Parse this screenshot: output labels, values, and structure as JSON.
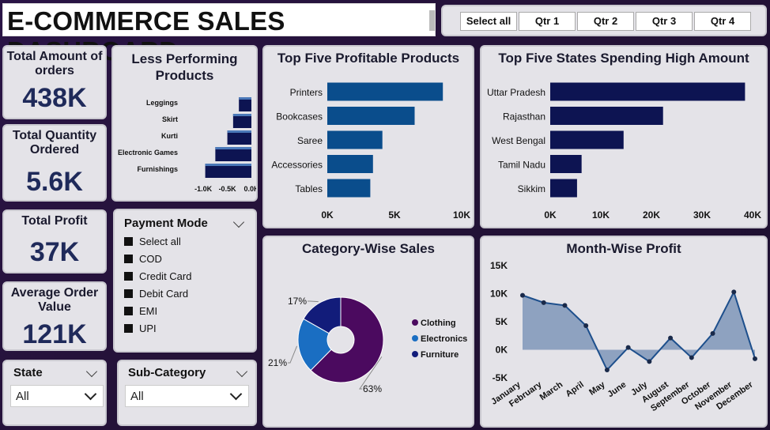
{
  "header": {
    "title": "E-COMMERCE SALES DASHBOARD"
  },
  "quarters": {
    "buttons": [
      "Select all",
      "Qtr 1",
      "Qtr 2",
      "Qtr 3",
      "Qtr 4"
    ]
  },
  "kpis": {
    "orders": {
      "label": "Total Amount of orders",
      "value": "438K"
    },
    "quantity": {
      "label": "Total Quantity Ordered",
      "value": "5.6K"
    },
    "profit": {
      "label": "Total Profit",
      "value": "37K"
    },
    "aov": {
      "label": "Average Order Value",
      "value": "121K"
    }
  },
  "payment": {
    "title": "Payment Mode",
    "options": [
      "Select all",
      "COD",
      "Credit Card",
      "Debit Card",
      "EMI",
      "UPI"
    ]
  },
  "state_slicer": {
    "title": "State",
    "value": "All"
  },
  "subcategory_slicer": {
    "title": "Sub-Category",
    "value": "All"
  },
  "colors": {
    "navy": "#0d1452",
    "blue_bar": "#0a4d8c",
    "clothing": "#4b0a5f",
    "electronics": "#1a6ec2",
    "furniture": "#121c7a",
    "area": "#7f96b9"
  },
  "chart_data": [
    {
      "id": "less_performing",
      "type": "bar",
      "title": "Less Performing Products",
      "categories": [
        "Leggings",
        "Skirt",
        "Kurti",
        "Electronic Games",
        "Furnishings"
      ],
      "values": [
        -0.26,
        -0.38,
        -0.5,
        -0.75,
        -0.96
      ],
      "xlim": [
        -1.2,
        0
      ],
      "xticks": [
        "-1.0K",
        "-0.5K",
        "0.0K"
      ],
      "xtick_values": [
        -1.0,
        -0.5,
        0
      ]
    },
    {
      "id": "profitable_products",
      "type": "bar",
      "title": "Top Five Profitable Products",
      "categories": [
        "Printers",
        "Bookcases",
        "Saree",
        "Accessories",
        "Tables"
      ],
      "values": [
        8.6,
        6.5,
        4.1,
        3.4,
        3.2
      ],
      "xlim": [
        0,
        10
      ],
      "xticks": [
        "0K",
        "5K",
        "10K"
      ],
      "xtick_values": [
        0,
        5,
        10
      ]
    },
    {
      "id": "states",
      "type": "bar",
      "title": "Top Five States Spending High Amount",
      "categories": [
        "Uttar Pradesh",
        "Rajasthan",
        "West Bengal",
        "Tamil Nadu",
        "Sikkim"
      ],
      "values": [
        38.5,
        22.3,
        14.5,
        6.2,
        5.3
      ],
      "xlim": [
        0,
        40
      ],
      "xticks": [
        "0K",
        "10K",
        "20K",
        "30K",
        "40K"
      ],
      "xtick_values": [
        0,
        10,
        20,
        30,
        40
      ]
    },
    {
      "id": "category_sales",
      "type": "pie",
      "title": "Category-Wise Sales",
      "labels": [
        "Clothing",
        "Electronics",
        "Furniture"
      ],
      "values": [
        63,
        21,
        17
      ],
      "value_labels": [
        "63%",
        "21%",
        "17%"
      ]
    },
    {
      "id": "month_profit",
      "type": "area",
      "title": "Month-Wise Profit",
      "x": [
        "January",
        "February",
        "March",
        "April",
        "May",
        "June",
        "July",
        "August",
        "September",
        "October",
        "November",
        "December"
      ],
      "values": [
        9.7,
        8.4,
        7.9,
        4.3,
        -3.6,
        0.4,
        -2.1,
        2.1,
        -1.4,
        2.9,
        10.3,
        -1.6
      ],
      "ylim": [
        -5,
        15
      ],
      "yticks": [
        "15K",
        "10K",
        "5K",
        "0K",
        "-5K"
      ],
      "ytick_values": [
        15,
        10,
        5,
        0,
        -5
      ]
    }
  ]
}
